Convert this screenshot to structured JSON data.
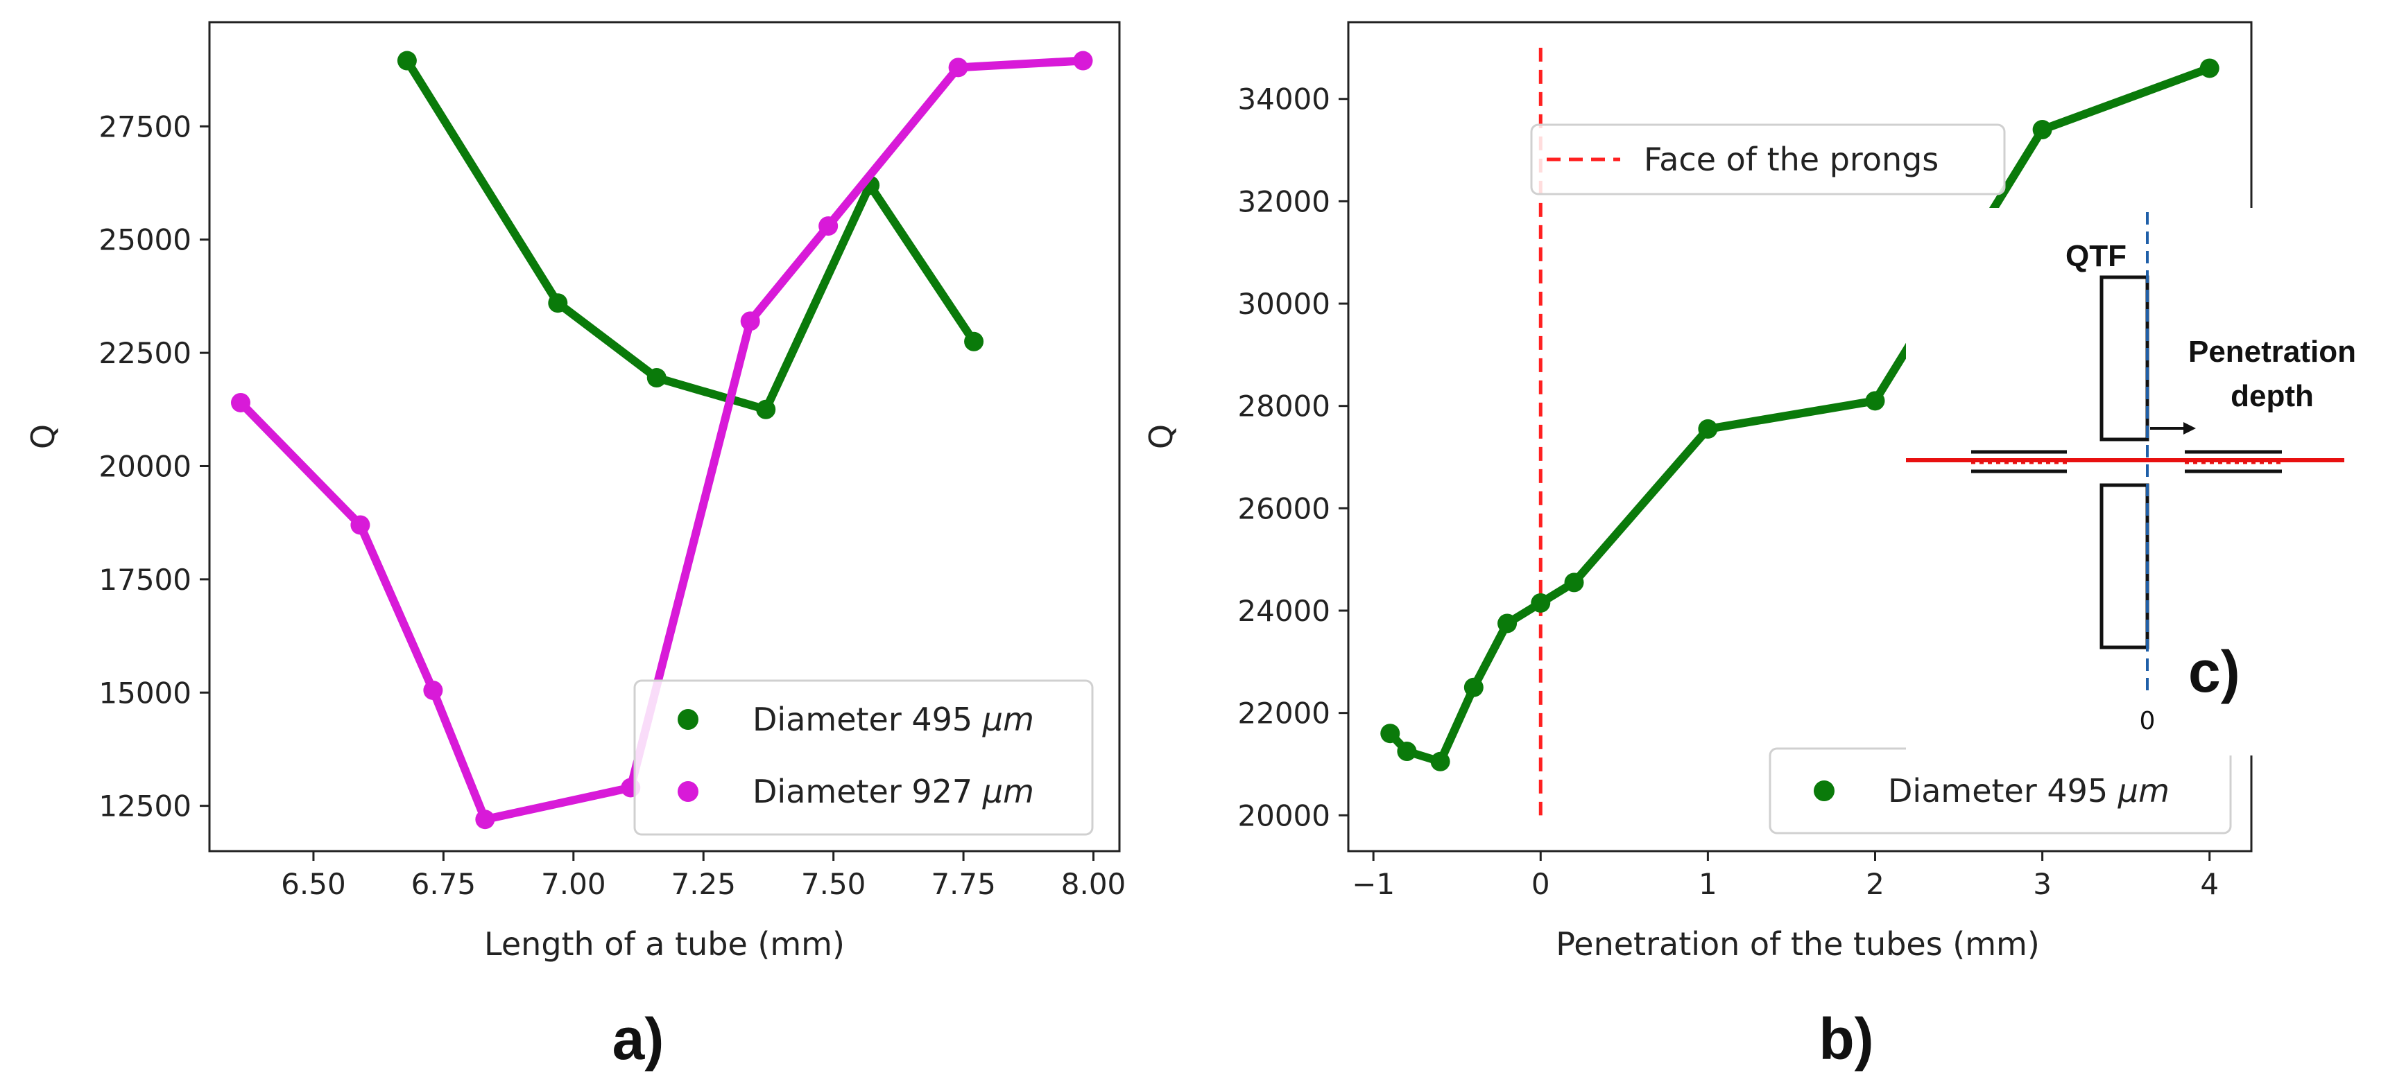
{
  "chart_data": [
    {
      "type": "line",
      "title": "",
      "xlabel": "Length of a tube (mm)",
      "ylabel": "Q",
      "xlim": [
        6.3,
        8.05
      ],
      "ylim": [
        11500,
        29800
      ],
      "xticks": [
        "6.50",
        "6.75",
        "7.00",
        "7.25",
        "7.50",
        "7.75",
        "8.00"
      ],
      "xtick_values": [
        6.5,
        6.75,
        7.0,
        7.25,
        7.5,
        7.75,
        8.0
      ],
      "yticks": [
        "12500",
        "15000",
        "17500",
        "20000",
        "22500",
        "25000",
        "27500"
      ],
      "ytick_values": [
        12500,
        15000,
        17500,
        20000,
        22500,
        25000,
        27500
      ],
      "grid": false,
      "legend_position": "lower-right",
      "series": [
        {
          "name": "Diameter 495 μm",
          "legend_prefix": "Diameter 495 ",
          "legend_unit": "μm",
          "color": "#0a7a0a",
          "x": [
            6.68,
            6.97,
            7.16,
            7.37,
            7.57,
            7.77
          ],
          "y": [
            28950,
            23600,
            21950,
            21250,
            26200,
            22750
          ]
        },
        {
          "name": "Diameter 927 μm",
          "legend_prefix": "Diameter 927 ",
          "legend_unit": "μm",
          "color": "#d81ad8",
          "x": [
            6.36,
            6.59,
            6.73,
            6.83,
            7.11,
            7.34,
            7.49,
            7.74,
            7.98
          ],
          "y": [
            21400,
            18700,
            15050,
            12200,
            12900,
            23200,
            25300,
            28800,
            28950
          ]
        }
      ],
      "panel_label": "a)"
    },
    {
      "type": "line",
      "title": "",
      "xlabel": "Penetration of the tubes (mm)",
      "ylabel": "Q",
      "xlim": [
        -1.15,
        4.25
      ],
      "ylim": [
        19300,
        35500
      ],
      "xticks": [
        "−1",
        "0",
        "1",
        "2",
        "3",
        "4"
      ],
      "xtick_values": [
        -1,
        0,
        1,
        2,
        3,
        4
      ],
      "yticks": [
        "20000",
        "22000",
        "24000",
        "26000",
        "28000",
        "30000",
        "32000",
        "34000"
      ],
      "ytick_values": [
        20000,
        22000,
        24000,
        26000,
        28000,
        30000,
        32000,
        34000
      ],
      "grid": false,
      "legend_position": "lower-right",
      "vline": {
        "x": 0,
        "y_from": 20000,
        "y_to": 35000,
        "color": "#ff2020",
        "name": "Face of the prongs"
      },
      "series": [
        {
          "name": "Diameter 495 μm",
          "legend_prefix": "Diameter 495 ",
          "legend_unit": "μm",
          "color": "#0a7a0a",
          "x": [
            -0.9,
            -0.8,
            -0.6,
            -0.4,
            -0.2,
            0.0,
            0.2,
            1.0,
            2.0,
            3.0,
            4.0
          ],
          "y": [
            21600,
            21250,
            21050,
            22500,
            23750,
            24150,
            24550,
            27550,
            28100,
            33400,
            34600
          ]
        }
      ],
      "panel_label": "b)"
    }
  ],
  "inset": {
    "label": "c)",
    "qtf": "QTF",
    "penetration_line1": "Penetration",
    "penetration_line2": "depth",
    "zero": "0",
    "colors": {
      "tube": "#e81010",
      "marker": "#1f5fa8",
      "outline": "#111111"
    }
  }
}
